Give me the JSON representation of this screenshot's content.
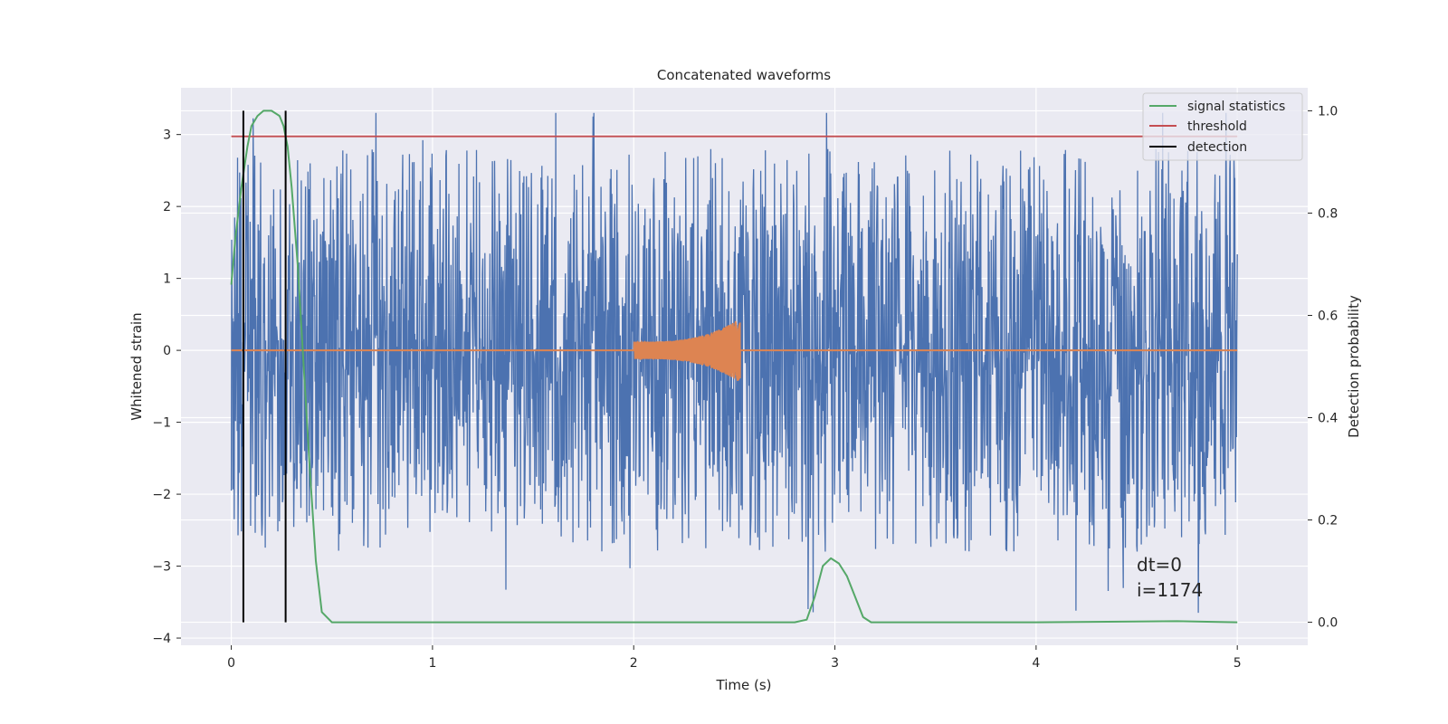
{
  "chart_data": {
    "type": "line",
    "title": "Concatenated waveforms",
    "xlabel": "Time (s)",
    "ylabel": "Whitened strain",
    "ylabel_right": "Detection probability",
    "xlim": [
      -0.25,
      5.35
    ],
    "ylim": [
      -4.1,
      3.65
    ],
    "ylim_right": [
      -0.045,
      1.045
    ],
    "xticks": [
      "0",
      "1",
      "2",
      "3",
      "4",
      "5"
    ],
    "yticks": [
      "3",
      "2",
      "1",
      "0",
      "−1",
      "−2",
      "−3",
      "−4"
    ],
    "yticks_right": [
      "1.0",
      "0.8",
      "0.6",
      "0.4",
      "0.2",
      "0.0"
    ],
    "grid": true,
    "legend_position": "top-right",
    "legend": [
      {
        "label": "signal statistics",
        "color": "#55a868"
      },
      {
        "label": "threshold",
        "color": "#c44e52"
      },
      {
        "label": "detection",
        "color": "#000000"
      }
    ],
    "annotations": [
      "dt=0",
      "i=1174"
    ],
    "series": [
      {
        "kind": "noise",
        "axis": "left",
        "color": "#4c72b0",
        "x_range": [
          0,
          5
        ],
        "typical_peak_abs": [
          2.0,
          3.3
        ],
        "bulk_amplitude": 0.9
      },
      {
        "kind": "chirp",
        "axis": "left",
        "color": "#dd8452",
        "x_range": [
          2.0,
          2.53
        ],
        "amplitude_start": 0.12,
        "amplitude_end": 0.45,
        "baseline_x_range": [
          0,
          5
        ],
        "baseline_y": 0
      },
      {
        "name": "signal statistics",
        "axis": "right",
        "color": "#55a868",
        "x": [
          0.0,
          0.02,
          0.05,
          0.08,
          0.1,
          0.13,
          0.16,
          0.2,
          0.24,
          0.26,
          0.28,
          0.3,
          0.33,
          0.36,
          0.39,
          0.42,
          0.45,
          0.5,
          1.0,
          1.5,
          2.0,
          2.5,
          2.8,
          2.86,
          2.9,
          2.94,
          2.98,
          3.02,
          3.06,
          3.1,
          3.14,
          3.18,
          3.3,
          4.0,
          4.7,
          5.0
        ],
        "y": [
          0.66,
          0.75,
          0.85,
          0.93,
          0.97,
          0.99,
          1.0,
          1.0,
          0.99,
          0.97,
          0.93,
          0.85,
          0.7,
          0.5,
          0.3,
          0.12,
          0.02,
          0.0,
          0.0,
          0.0,
          0.0,
          0.0,
          0.0,
          0.005,
          0.05,
          0.11,
          0.125,
          0.115,
          0.09,
          0.05,
          0.01,
          0.0,
          0.0,
          0.0,
          0.002,
          0.0
        ]
      },
      {
        "name": "threshold",
        "axis": "right",
        "color": "#c44e52",
        "x": [
          0,
          5
        ],
        "y": [
          0.95,
          0.95
        ]
      },
      {
        "name": "detection",
        "axis": "right",
        "color": "#000000",
        "kind": "vlines",
        "x": [
          0.06,
          0.27
        ],
        "y_range": [
          0,
          1.0
        ]
      }
    ]
  }
}
